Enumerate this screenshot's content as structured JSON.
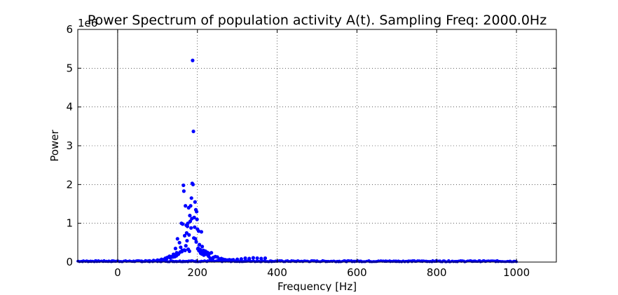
{
  "chart_data": {
    "type": "scatter",
    "title": "Power Spectrum of population activity A(t). Sampling Freq: 2000.0Hz",
    "xlabel": "Frequency [Hz]",
    "ylabel": "Power",
    "y_offset_label": "1e6",
    "xlim": [
      -100,
      1100
    ],
    "ylim": [
      0,
      6
    ],
    "y_scale_multiplier": 1000000,
    "xticks": [
      0,
      200,
      400,
      600,
      800,
      1000
    ],
    "xtick_labels": [
      "0",
      "200",
      "400",
      "600",
      "800",
      "1000"
    ],
    "yticks": [
      0,
      1,
      2,
      3,
      4,
      5,
      6
    ],
    "ytick_labels": [
      "0",
      "1",
      "2",
      "3",
      "4",
      "5",
      "6"
    ],
    "grid": true,
    "zero_line_x": 0,
    "marker_color": "#0000ff",
    "series": [
      {
        "x": [
          188,
          190,
          165,
          187,
          189,
          166,
          185,
          183,
          194,
          196,
          198,
          178,
          181,
          170,
          186,
          192,
          199,
          182,
          176,
          172,
          160,
          163,
          175,
          184,
          193,
          200,
          203,
          210,
          173,
          179,
          168,
          191,
          195,
          174,
          150,
          155,
          197,
          205,
          212,
          145,
          158,
          162,
          171,
          177,
          180,
          202,
          207,
          215,
          220,
          225,
          140,
          148,
          153,
          157,
          161,
          167,
          169,
          201,
          204,
          209,
          213,
          218,
          222,
          230,
          235,
          130,
          135,
          142,
          147,
          152,
          208,
          211,
          216,
          228,
          240,
          245,
          250,
          120,
          125,
          132,
          138,
          143,
          232,
          238,
          255,
          260,
          110,
          115,
          118,
          122,
          265,
          270,
          275,
          280,
          100,
          105,
          285,
          290,
          300,
          310,
          320,
          330,
          340,
          350,
          360,
          370,
          90,
          80,
          70,
          60
        ],
        "y": [
          5.2,
          3.37,
          1.98,
          2.03,
          2.0,
          1.83,
          1.65,
          1.45,
          1.55,
          1.35,
          1.3,
          1.4,
          1.2,
          1.45,
          1.12,
          1.15,
          1.1,
          1.05,
          1.0,
          0.95,
          1.0,
          0.98,
          0.92,
          0.88,
          0.9,
          0.85,
          0.8,
          0.78,
          0.75,
          0.7,
          0.68,
          0.62,
          0.6,
          0.55,
          0.6,
          0.5,
          0.52,
          0.45,
          0.4,
          0.35,
          0.38,
          0.3,
          0.42,
          0.33,
          0.28,
          0.36,
          0.32,
          0.3,
          0.28,
          0.25,
          0.2,
          0.24,
          0.22,
          0.26,
          0.27,
          0.31,
          0.3,
          0.34,
          0.29,
          0.27,
          0.25,
          0.22,
          0.2,
          0.22,
          0.24,
          0.15,
          0.14,
          0.18,
          0.16,
          0.2,
          0.23,
          0.21,
          0.18,
          0.15,
          0.12,
          0.14,
          0.13,
          0.1,
          0.12,
          0.11,
          0.13,
          0.14,
          0.1,
          0.09,
          0.08,
          0.09,
          0.07,
          0.06,
          0.08,
          0.07,
          0.07,
          0.06,
          0.05,
          0.06,
          0.05,
          0.04,
          0.05,
          0.06,
          0.07,
          0.08,
          0.1,
          0.09,
          0.11,
          0.1,
          0.09,
          0.1,
          0.04,
          0.03,
          0.03,
          0.02
        ]
      }
    ]
  }
}
